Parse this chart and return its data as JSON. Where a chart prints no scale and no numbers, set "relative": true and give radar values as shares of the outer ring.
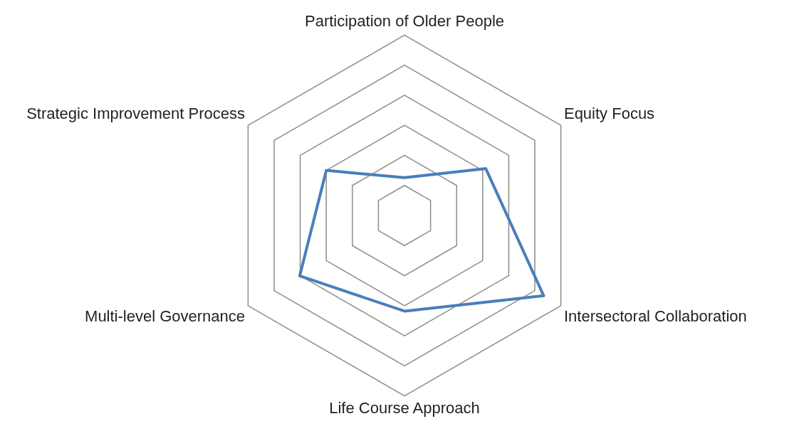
{
  "chart_data": {
    "type": "radar",
    "relative": true,
    "categories": [
      "Participation of Older People",
      "Equity Focus",
      "Intersectoral Collaboration",
      "Life Course Approach",
      "Multi-level Governance",
      "Strategic Improvement Process"
    ],
    "series": [
      {
        "color": "#4a7ebb",
        "values": [
          0.21,
          0.52,
          0.89,
          0.53,
          0.67,
          0.5
        ]
      }
    ],
    "legend": false,
    "marker": "none"
  }
}
